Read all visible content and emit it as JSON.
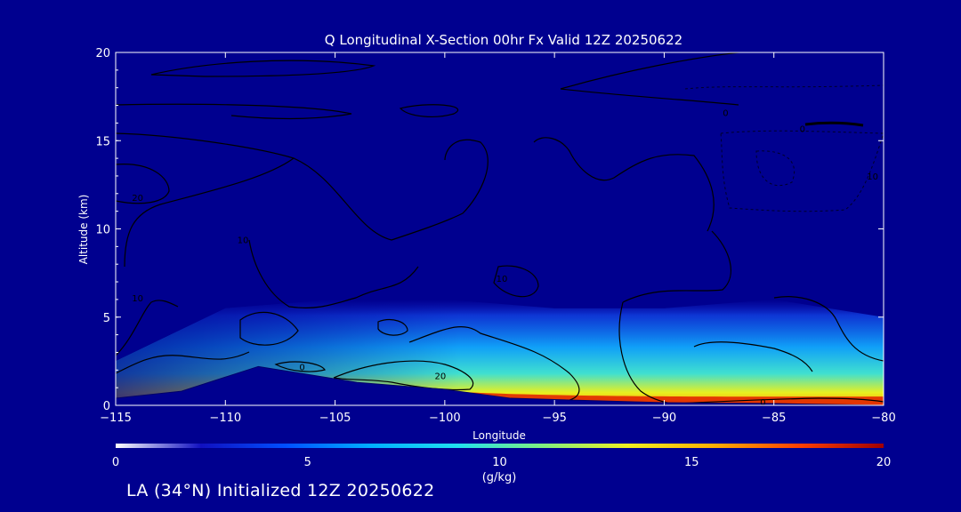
{
  "chart_data": {
    "type": "heatmap",
    "title": "Q Longitudinal X-Section 00hr  Fx Valid 12Z 20250622",
    "xlabel": "Longitude",
    "ylabel": "Altitude (km)",
    "xlim": [
      -115,
      -80
    ],
    "ylim": [
      0,
      20
    ],
    "x_ticks": [
      "−115",
      "−110",
      "−105",
      "−100",
      "−95",
      "−90",
      "−85",
      "−80"
    ],
    "y_ticks": [
      "0",
      "5",
      "10",
      "15",
      "20"
    ],
    "colorbar": {
      "label": "(g/kg)",
      "range": [
        0,
        20
      ],
      "ticks": [
        "0",
        "5",
        "10",
        "15",
        "20"
      ],
      "stops": [
        "#ffffff",
        "#1010c0",
        "#0050ff",
        "#00b0ff",
        "#20e0f0",
        "#80f080",
        "#f0f020",
        "#ffb000",
        "#ff4000",
        "#a00000"
      ]
    },
    "moisture_layer": [
      {
        "lon": -115,
        "top_km": 2.5,
        "peak_gkg": 6
      },
      {
        "lon": -110,
        "top_km": 5.5,
        "peak_gkg": 7
      },
      {
        "lon": -105,
        "top_km": 6.0,
        "peak_gkg": 10
      },
      {
        "lon": -100,
        "top_km": 6.0,
        "peak_gkg": 14
      },
      {
        "lon": -95,
        "top_km": 5.5,
        "peak_gkg": 15
      },
      {
        "lon": -90,
        "top_km": 5.5,
        "peak_gkg": 15
      },
      {
        "lon": -85,
        "top_km": 6.0,
        "peak_gkg": 15
      },
      {
        "lon": -80,
        "top_km": 5.0,
        "peak_gkg": 15
      }
    ],
    "terrain_km": [
      {
        "lon": -115,
        "alt": 0.4
      },
      {
        "lon": -112,
        "alt": 0.8
      },
      {
        "lon": -108.5,
        "alt": 2.2
      },
      {
        "lon": -106,
        "alt": 1.7
      },
      {
        "lon": -104,
        "alt": 1.3
      },
      {
        "lon": -100,
        "alt": 0.9
      },
      {
        "lon": -97,
        "alt": 0.4
      },
      {
        "lon": -90,
        "alt": 0.15
      },
      {
        "lon": -85,
        "alt": 0.1
      },
      {
        "lon": -80,
        "alt": 0.0
      }
    ],
    "contour_labels": [
      {
        "text": "20",
        "lon": -114,
        "alt": 11.8
      },
      {
        "text": "10",
        "lon": -109.2,
        "alt": 9.4
      },
      {
        "text": "10",
        "lon": -114,
        "alt": 6.1
      },
      {
        "text": "0",
        "lon": -106.5,
        "alt": 2.2
      },
      {
        "text": "20",
        "lon": -100.2,
        "alt": 1.7
      },
      {
        "text": "10",
        "lon": -97.4,
        "alt": 7.2
      },
      {
        "text": "0",
        "lon": -85.5,
        "alt": 0.2
      },
      {
        "text": "0",
        "lon": -87.2,
        "alt": 16.6
      },
      {
        "text": "0",
        "lon": -83.7,
        "alt": 15.7
      },
      {
        "text": "10",
        "lon": -80.5,
        "alt": 13.0
      }
    ]
  },
  "footer_text": "LA (34°N) Initialized 12Z 20250622"
}
